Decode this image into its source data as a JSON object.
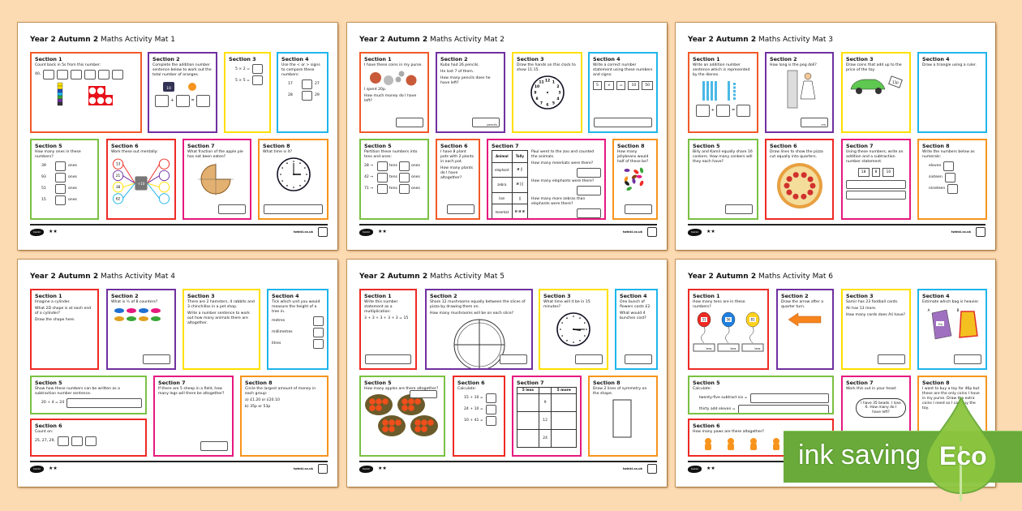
{
  "colors": {
    "background": "#fcdab2",
    "red": "#ee2a24",
    "purple": "#7030a0",
    "yellow": "#ffe000",
    "blue": "#1fb5ea",
    "green": "#7ac143",
    "orange_red": "#f15a29",
    "pink": "#e6197e",
    "orange": "#f7941d",
    "eco_green": "#6aaa3a"
  },
  "footer": {
    "logo": "twinkl",
    "stars": "★★",
    "site": "twinkl.co.uk"
  },
  "badge": {
    "left": "ink saving",
    "right": "Eco"
  },
  "mats": [
    {
      "title_bold": "Year 2 Autumn 2",
      "title_rest": "Maths Activity Mat 1",
      "sections": [
        {
          "heading": "Section 1",
          "color": "#f15a29",
          "text": [
            "Count back in 5s from this number:"
          ],
          "seq": {
            "start": "40,",
            "boxes": 6
          },
          "art": "cubes-tenframe"
        },
        {
          "heading": "Section 2",
          "color": "#7030a0",
          "text": [
            "Complete the addition number sentence below to work out the total number of oranges."
          ],
          "art": "oranges",
          "art_labels": [
            "10"
          ],
          "eq": [
            "+",
            "="
          ]
        },
        {
          "heading": "Section 3",
          "color": "#ffe000",
          "rows": [
            {
              "pre": "5 × 2 ="
            },
            {
              "pre": "5 × 5 ="
            }
          ]
        },
        {
          "heading": "Section 4",
          "color": "#1fb5ea",
          "text": [
            "Use the < or > signs to compare these numbers:"
          ],
          "rows": [
            {
              "pre": "17",
              "post": "27"
            },
            {
              "pre": "28",
              "post": "29"
            }
          ]
        },
        {
          "heading": "Section 5",
          "color": "#7ac143",
          "text": [
            "How many ones in these numbers?"
          ],
          "rows": [
            {
              "pre": "39",
              "post": "ones"
            },
            {
              "pre": "93",
              "post": "ones"
            },
            {
              "pre": "51",
              "post": "ones"
            },
            {
              "pre": "15",
              "post": "ones"
            }
          ]
        },
        {
          "heading": "Section 6",
          "color": "#ee2a24",
          "text": [
            "Work these out mentally:"
          ],
          "art": "machine",
          "art_labels": [
            "13",
            "21",
            "38",
            "62",
            "+10"
          ]
        },
        {
          "heading": "Section 7",
          "color": "#e6197e",
          "text": [
            "What fraction of the apple pie has not been eaten?"
          ],
          "art": "pie",
          "answer": {
            "suffix": ""
          }
        },
        {
          "heading": "Section 8",
          "color": "#f7941d",
          "text": [
            "What time is it?"
          ],
          "art": "clock-3",
          "answer_wide": true
        }
      ]
    },
    {
      "title_bold": "Year 2 Autumn 2",
      "title_rest": "Maths Activity Mat 2",
      "sections": [
        {
          "heading": "Section 1",
          "color": "#f15a29",
          "text": [
            "I have these coins in my purse."
          ],
          "art": "coins",
          "text2": [
            "I spent 20p.",
            "How much money do I have left?"
          ],
          "answer": {
            "suffix": ""
          }
        },
        {
          "heading": "Section 2",
          "color": "#7030a0",
          "text": [
            "Kuba had 26 pencils.",
            "He lost 7 of them.",
            "How many pencils does he have left?"
          ],
          "answer": {
            "suffix": "pencils"
          }
        },
        {
          "heading": "Section 3",
          "color": "#ffe000",
          "text": [
            "Draw the hands on this clock to show 11:15."
          ],
          "art": "clock-blank"
        },
        {
          "heading": "Section 4",
          "color": "#1fb5ea",
          "text": [
            "Write a correct number statement using these numbers and signs:"
          ],
          "tiles": [
            "5",
            "×",
            "=",
            "10",
            "50"
          ],
          "answer_wide": true
        },
        {
          "heading": "Section 5",
          "color": "#7ac143",
          "text": [
            "Partition these numbers into tens and ones:"
          ],
          "rows": [
            {
              "pre": "28 →",
              "mid": "tens",
              "post": "ones"
            },
            {
              "pre": "42 →",
              "mid": "tens",
              "post": "ones"
            },
            {
              "pre": "71 →",
              "mid": "tens",
              "post": "ones"
            }
          ]
        },
        {
          "heading": "Section 6",
          "color": "#f15a29",
          "text": [
            "I have 8 plant pots with 2 plants in each pot.",
            "How many plants do I have altogether?"
          ],
          "answer": {
            "suffix": ""
          }
        },
        {
          "heading": "Section 7",
          "color": "#e6197e",
          "table": {
            "head": [
              "Animal",
              "Tally"
            ],
            "rows": [
              [
                "elephant",
                "𝍸 ||"
              ],
              [
                "zebra",
                "𝍸 |||"
              ],
              [
                "lion",
                "||"
              ],
              [
                "meerkat",
                "𝍸 𝍸 𝍸"
              ]
            ]
          },
          "text": [
            "Paul went to the zoo and counted the animals.",
            "How many meerkats were there?",
            "How many elephants were there?",
            "How many more zebras than elephants were there?"
          ]
        },
        {
          "heading": "Section 8",
          "color": "#f7941d",
          "text": [
            "How many jellybeans would half of these be?"
          ],
          "art": "jellybeans",
          "answer": {
            "suffix": ""
          }
        }
      ]
    },
    {
      "title_bold": "Year 2 Autumn 2",
      "title_rest": "Maths Activity Mat 3",
      "sections": [
        {
          "heading": "Section 1",
          "color": "#f15a29",
          "text": [
            "Write an addition number sentence which is represented by the dienes."
          ],
          "art": "dienes",
          "eq": [
            "+",
            "="
          ]
        },
        {
          "heading": "Section 2",
          "color": "#7030a0",
          "text": [
            "How long is the peg doll?"
          ],
          "art": "ruler",
          "answer": {
            "suffix": "cm"
          }
        },
        {
          "heading": "Section 3",
          "color": "#ffe000",
          "text": [
            "Draw coins that add up to the price of the toy."
          ],
          "art": "car",
          "art_labels": [
            "11p"
          ]
        },
        {
          "heading": "Section 4",
          "color": "#1fb5ea",
          "text": [
            "Draw a triangle using a ruler."
          ]
        },
        {
          "heading": "Section 5",
          "color": "#7ac143",
          "text": [
            "Billy and Kamil equally share 16 conkers. How many conkers will they each have?"
          ],
          "answer": {
            "suffix": ""
          }
        },
        {
          "heading": "Section 6",
          "color": "#ee2a24",
          "text": [
            "Draw lines to show the pizza cut equally into quarters."
          ],
          "art": "pizza"
        },
        {
          "heading": "Section 7",
          "color": "#e6197e",
          "text": [
            "Using these numbers, write an addition and a subtraction number statement."
          ],
          "tiles": [
            "18",
            "8",
            "10"
          ],
          "lines": 2
        },
        {
          "heading": "Section 8",
          "color": "#f7941d",
          "text": [
            "Write the numbers below as numerals:"
          ],
          "rows": [
            {
              "pre": "eleven"
            },
            {
              "pre": "sixteen"
            },
            {
              "pre": "nineteen"
            }
          ]
        }
      ]
    },
    {
      "title_bold": "Year 2 Autumn 2",
      "title_rest": "Maths Activity Mat 4",
      "sections": [
        {
          "heading": "Section 1",
          "color": "#ee2a24",
          "text": [
            "Imagine a cylinder.",
            "What 2D shape is at each end of a cylinder?",
            "Draw the shape here."
          ]
        },
        {
          "heading": "Section 2",
          "color": "#7030a0",
          "text": [
            "What is ½ of 8 counters?"
          ],
          "art": "counters",
          "answer": {
            "suffix": ""
          }
        },
        {
          "heading": "Section 3",
          "color": "#ffe000",
          "text": [
            "There are 2 hamsters, 4 rabbits and 3 chinchillas in a pet shop.",
            "Write a number sentence to work out how many animals there are altogether."
          ]
        },
        {
          "heading": "Section 4",
          "color": "#1fb5ea",
          "text": [
            "Tick which unit you would measure the height of a tree in."
          ],
          "rows": [
            {
              "pre": "metres"
            },
            {
              "pre": "millimetres"
            },
            {
              "pre": "litres"
            }
          ],
          "rows_right": true
        },
        {
          "heading": "Section 5",
          "color": "#7ac143",
          "text": [
            "Show how these numbers can be written as a subtraction number sentence."
          ],
          "rows": [
            {
              "pre": "20 + 4 = 24",
              "wide": true
            }
          ]
        },
        {
          "heading": "Section 6",
          "color": "#ee2a24",
          "text": [
            "Count on:"
          ],
          "seq": {
            "start": "25, 27, 29,",
            "boxes": 3
          }
        },
        {
          "heading": "Section 7",
          "color": "#e6197e",
          "text": [
            "If there are 5 sheep in a field, how many legs will there be altogether?"
          ],
          "answer": {
            "suffix": ""
          }
        },
        {
          "heading": "Section 8",
          "color": "#f7941d",
          "text": [
            "Circle the largest amount of money in each group:",
            "a) £1.20    or    £20.10",
            "b) 35p    or    53p"
          ]
        }
      ]
    },
    {
      "title_bold": "Year 2 Autumn 2",
      "title_rest": "Maths Activity Mat 5",
      "sections": [
        {
          "heading": "Section 1",
          "color": "#ee2a24",
          "text": [
            "Write this number statement as a multiplication:",
            "3 + 3 + 3 + 3 + 3 = 15"
          ],
          "answer_wide": true
        },
        {
          "heading": "Section 2",
          "color": "#7030a0",
          "text": [
            "Share 12 mushrooms equally between the slices of pizza by drawing them on.",
            "How many mushrooms will be on each slice?"
          ],
          "art": "pizza-outline",
          "answer": {
            "suffix": ""
          }
        },
        {
          "heading": "Section 3",
          "color": "#ffe000",
          "text": [
            "What time will it be in 15 minutes?"
          ],
          "art": "clock-315",
          "answer": {
            "suffix": ""
          }
        },
        {
          "heading": "Section 4",
          "color": "#1fb5ea",
          "text": [
            "One bunch of flowers costs £2.",
            "What would 4 bunches cost?"
          ],
          "answer": {
            "suffix": ""
          }
        },
        {
          "heading": "Section 5",
          "color": "#7ac143",
          "text": [
            "How many apples are there altogether?"
          ],
          "art": "apples",
          "answer_top": true
        },
        {
          "heading": "Section 6",
          "color": "#ee2a24",
          "text": [
            "Calculate:"
          ],
          "rows": [
            {
              "pre": "15 + 10 ="
            },
            {
              "pre": "24 + 10 ="
            },
            {
              "pre": "10 + 41 ="
            }
          ]
        },
        {
          "heading": "Section 7",
          "color": "#e6197e",
          "table": {
            "head": [
              "5 less",
              "",
              "5 more"
            ],
            "rows": [
              [
                "",
                "9",
                ""
              ],
              [
                "",
                "12",
                ""
              ],
              [
                "",
                "24",
                ""
              ]
            ]
          }
        },
        {
          "heading": "Section 8",
          "color": "#f7941d",
          "text": [
            "Draw 2 lines of symmetry on the shape."
          ],
          "art": "rect"
        }
      ]
    },
    {
      "title_bold": "Year 2 Autumn 2",
      "title_rest": "Maths Activity Mat 6",
      "sections": [
        {
          "heading": "Section 1",
          "color": "#ee2a24",
          "text": [
            "How many tens are in these numbers?"
          ],
          "art": "balloons",
          "art_labels": [
            "31",
            "56",
            "81",
            "tens"
          ]
        },
        {
          "heading": "Section 2",
          "color": "#7030a0",
          "text": [
            "Draw the arrow after a quarter turn."
          ],
          "art": "arrow"
        },
        {
          "heading": "Section 3",
          "color": "#ffe000",
          "text": [
            "Samir has 23 football cards.",
            "Ali has 13 more.",
            "How many cards does Ali have?"
          ],
          "answer": {
            "suffix": ""
          }
        },
        {
          "heading": "Section 4",
          "color": "#1fb5ea",
          "text": [
            "Estimate which bag is heavier."
          ],
          "art": "bags",
          "art_labels": [
            "A",
            "B",
            "1kg"
          ],
          "answer": {
            "suffix": ""
          }
        },
        {
          "heading": "Section 5",
          "color": "#7ac143",
          "text": [
            "Calculate:"
          ],
          "rows": [
            {
              "pre": "twenty-five subtract six =",
              "wide": true
            },
            {
              "pre": "thirty add eleven =",
              "wide": true
            }
          ]
        },
        {
          "heading": "Section 6",
          "color": "#ee2a24",
          "text": [
            "How many paws are there altogether?"
          ],
          "art": "tigers"
        },
        {
          "heading": "Section 7",
          "color": "#e6197e",
          "text": [
            "Work this out in your head:"
          ],
          "art": "bubble",
          "art_labels": [
            "I have 35 beads. I lose 6. How many do I have left?"
          ]
        },
        {
          "heading": "Section 8",
          "color": "#f7941d",
          "text": [
            "I want to buy a toy for 46p but these are the only coins I have in my purse. Draw the extra coins I need so I can buy the toy."
          ]
        }
      ]
    }
  ]
}
